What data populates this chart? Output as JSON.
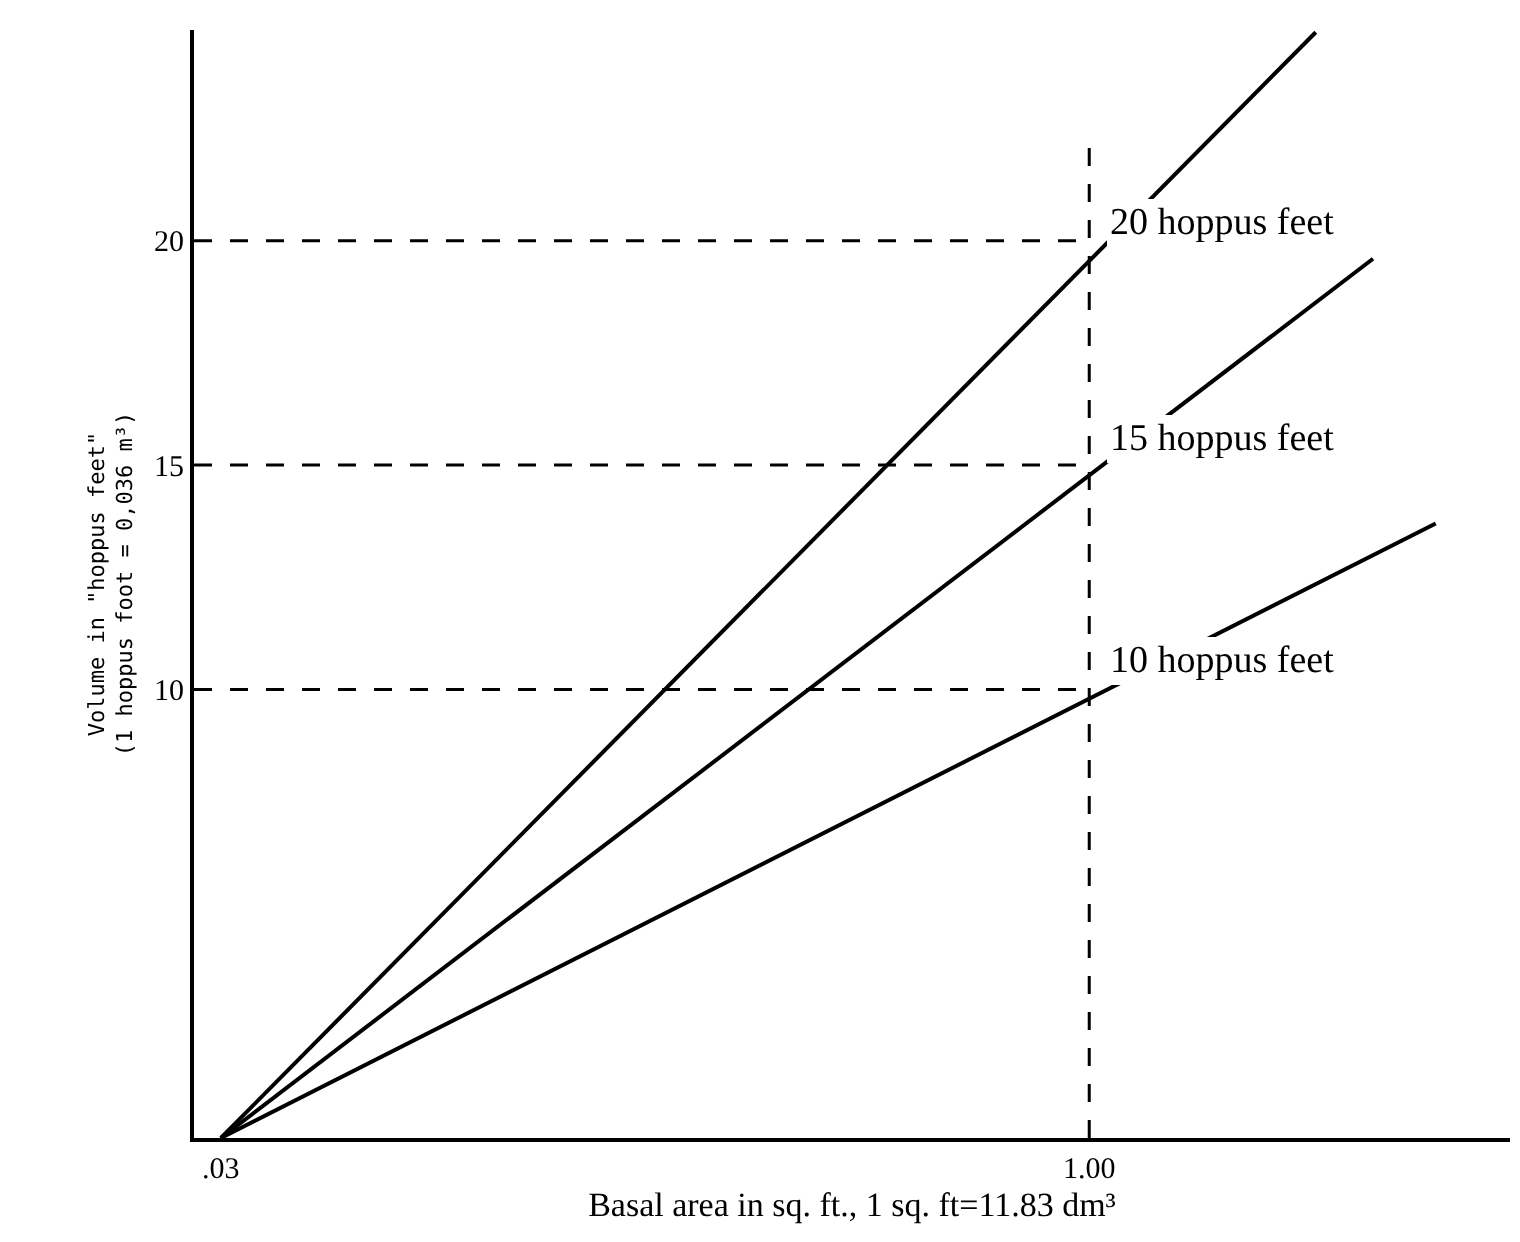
{
  "chart_data": {
    "type": "line",
    "xlabel": "Basal area in sq. ft., 1 sq. ft=11.83 dm³",
    "ylabel": "Volume in \"hoppus feet\"\n(1 hoppus foot = 0,036 m³)",
    "series": [
      {
        "name": "20 hoppus feet",
        "color": "#000000",
        "x": [
          0.03,
          1.253
        ],
        "values": [
          0,
          24.65
        ]
      },
      {
        "name": "15 hoppus feet",
        "color": "#000000",
        "x": [
          0.03,
          1.317
        ],
        "values": [
          0,
          19.6
        ]
      },
      {
        "name": "10 hoppus feet",
        "color": "#000000",
        "x": [
          0.03,
          1.387
        ],
        "values": [
          0,
          13.7
        ]
      }
    ],
    "xlim": [
      0,
      1.47
    ],
    "ylim": [
      0,
      24.7
    ],
    "xticks": [
      {
        "value": 0.03,
        "label": ".03"
      },
      {
        "value": 1.0,
        "label": "1.00"
      }
    ],
    "yticks": [
      10,
      15,
      20
    ],
    "ref_lines": [
      {
        "axis": "x",
        "value": 1.0,
        "line_style": "dashed",
        "color": "#000000"
      },
      {
        "axis": "y",
        "value": 20,
        "line_style": "dashed",
        "color": "#000000"
      },
      {
        "axis": "y",
        "value": 15,
        "line_style": "dashed",
        "color": "#000000"
      },
      {
        "axis": "y",
        "value": 10,
        "line_style": "dashed",
        "color": "#000000"
      }
    ],
    "marker": "none",
    "line_style": "solid"
  }
}
